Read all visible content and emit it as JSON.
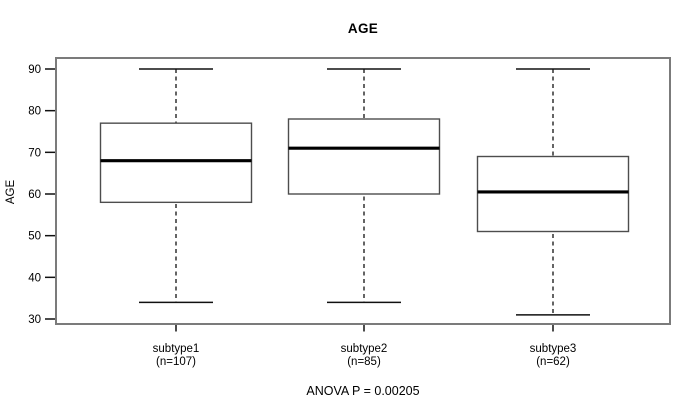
{
  "chart_data": {
    "type": "boxplot",
    "title": "AGE",
    "ylabel": "AGE",
    "xlabel": "",
    "footnote": "ANOVA P = 0.00205",
    "yticks": [
      30,
      40,
      50,
      60,
      70,
      80,
      90
    ],
    "ylim": [
      28.5,
      92.5
    ],
    "grid": false,
    "legend": "none",
    "groups": [
      {
        "label": "subtype1",
        "sublabel": "(n=107)",
        "n": 107,
        "whisker_low": 34,
        "q1": 58,
        "median": 68,
        "q3": 77,
        "whisker_high": 90
      },
      {
        "label": "subtype2",
        "sublabel": "(n=85)",
        "n": 85,
        "whisker_low": 34,
        "q1": 60,
        "median": 71,
        "q3": 78,
        "whisker_high": 90
      },
      {
        "label": "subtype3",
        "sublabel": "(n=62)",
        "n": 62,
        "whisker_low": 31,
        "q1": 51,
        "median": 60.5,
        "q3": 69,
        "whisker_high": 90
      }
    ],
    "colors": {
      "background": "#ffffff",
      "frame": "#7b7b7b",
      "box_stroke": "#4d4d4d",
      "box_fill": "#ffffff",
      "median": "#000000",
      "axis": "#111111",
      "text": "#000000"
    }
  }
}
